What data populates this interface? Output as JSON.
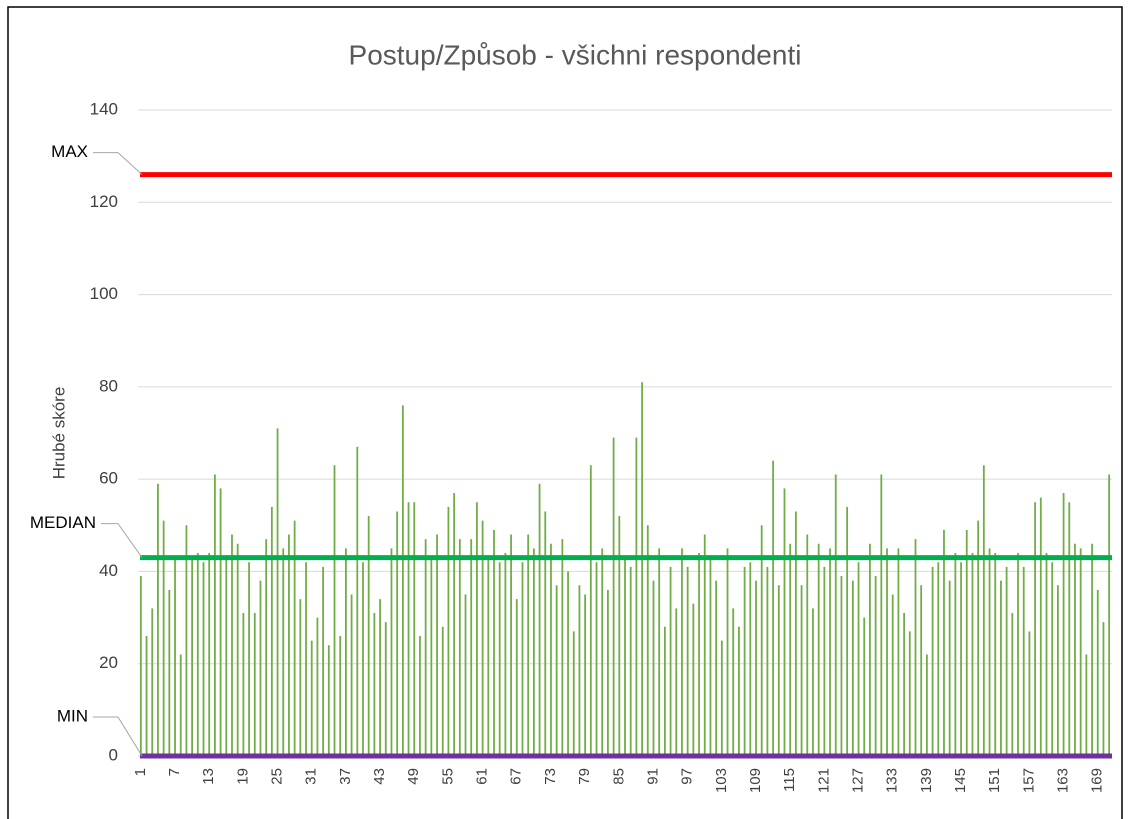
{
  "chart_data": {
    "type": "bar",
    "title": "Postup/Způsob - všichni respondenti",
    "y_label": "Hrubé skóre",
    "categories": [
      1,
      null,
      null,
      null,
      null,
      null,
      7,
      null,
      null,
      null,
      null,
      null,
      13,
      null,
      null,
      null,
      null,
      null,
      19,
      null,
      null,
      null,
      null,
      null,
      25,
      null,
      null,
      null,
      null,
      null,
      31,
      null,
      null,
      null,
      null,
      null,
      37,
      null,
      null,
      null,
      null,
      null,
      43,
      null,
      null,
      null,
      null,
      null,
      49,
      null,
      null,
      null,
      null,
      null,
      55,
      null,
      null,
      null,
      null,
      null,
      61,
      null,
      null,
      null,
      null,
      null,
      67,
      null,
      null,
      null,
      null,
      null,
      73,
      null,
      null,
      null,
      null,
      null,
      79,
      null,
      null,
      null,
      null,
      null,
      85,
      null,
      null,
      null,
      null,
      null,
      91,
      null,
      null,
      null,
      null,
      null,
      97,
      null,
      null,
      null,
      null,
      null,
      103,
      null,
      null,
      null,
      null,
      null,
      109,
      null,
      null,
      null,
      null,
      null,
      115,
      null,
      null,
      null,
      null,
      null,
      121,
      null,
      null,
      null,
      null,
      null,
      127,
      null,
      null,
      null,
      null,
      null,
      133,
      null,
      null,
      null,
      null,
      null,
      139,
      null,
      null,
      null,
      null,
      null,
      145,
      null,
      null,
      null,
      null,
      null,
      151,
      null,
      null,
      null,
      null,
      null,
      157,
      null,
      null,
      null,
      null,
      null,
      163,
      null,
      null,
      null,
      null,
      null,
      169,
      null,
      null
    ],
    "values": [
      39,
      26,
      32,
      59,
      51,
      36,
      43,
      22,
      50,
      43,
      44,
      42,
      44,
      61,
      58,
      43,
      48,
      46,
      31,
      42,
      31,
      38,
      47,
      54,
      71,
      45,
      48,
      51,
      34,
      42,
      25,
      30,
      41,
      24,
      63,
      26,
      45,
      35,
      67,
      42,
      52,
      31,
      34,
      29,
      45,
      53,
      76,
      55,
      55,
      26,
      47,
      43,
      48,
      28,
      54,
      57,
      47,
      35,
      47,
      55,
      51,
      43,
      49,
      42,
      44,
      48,
      34,
      42,
      48,
      45,
      59,
      53,
      46,
      37,
      47,
      40,
      27,
      37,
      35,
      63,
      42,
      45,
      36,
      69,
      52,
      43,
      41,
      69,
      81,
      50,
      38,
      45,
      28,
      41,
      32,
      45,
      41,
      33,
      44,
      48,
      43,
      38,
      25,
      45,
      32,
      28,
      41,
      42,
      38,
      50,
      41,
      64,
      37,
      58,
      46,
      53,
      37,
      48,
      32,
      46,
      41,
      45,
      61,
      39,
      54,
      38,
      42,
      30,
      46,
      39,
      61,
      45,
      35,
      45,
      31,
      27,
      47,
      37,
      22,
      41,
      42,
      49,
      38,
      44,
      42,
      49,
      44,
      51,
      63,
      45,
      44,
      38,
      41,
      31,
      44,
      41,
      27,
      55,
      56,
      44,
      42,
      37,
      57,
      55,
      46,
      45,
      22,
      46,
      36,
      29,
      61
    ],
    "color": "#70ad47",
    "ylim": [
      0,
      140
    ],
    "yticks": [
      0,
      20,
      40,
      60,
      80,
      100,
      120,
      140
    ],
    "grid": true,
    "reference_lines": [
      {
        "label": "MAX",
        "value": 126,
        "color": "#ff0000"
      },
      {
        "label": "MEDIAN",
        "value": 43,
        "color": "#00b050"
      },
      {
        "label": "MIN",
        "value": 0,
        "color": "#7030a0"
      }
    ]
  }
}
